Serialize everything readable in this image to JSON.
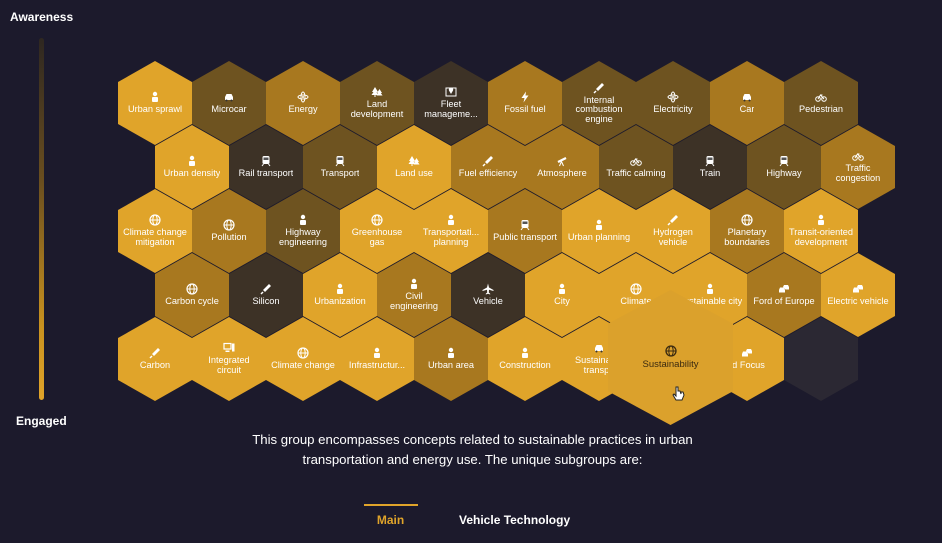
{
  "scale": {
    "top_label": "Awareness",
    "bottom_label": "Engaged"
  },
  "hexes": [
    {
      "label": "Urban sprawl",
      "icon": "worker-icon",
      "tone": 0
    },
    {
      "label": "Microcar",
      "icon": "car-icon",
      "tone": 2
    },
    {
      "label": "Energy",
      "icon": "atom-icon",
      "tone": 1
    },
    {
      "label": "Land development",
      "icon": "trees-icon",
      "tone": 2
    },
    {
      "label": "Fleet manageme...",
      "icon": "map-pin-icon",
      "tone": 3
    },
    {
      "label": "Fossil fuel",
      "icon": "bolt-icon",
      "tone": 1
    },
    {
      "label": "Internal combustion engine",
      "icon": "syringe-icon",
      "tone": 2
    },
    {
      "label": "Electricity",
      "icon": "atom-icon",
      "tone": 2
    },
    {
      "label": "Car",
      "icon": "car-icon",
      "tone": 1
    },
    {
      "label": "Pedestrian",
      "icon": "bicycle-icon",
      "tone": 2
    },
    {
      "label": "Urban density",
      "icon": "worker-icon",
      "tone": 0
    },
    {
      "label": "Rail transport",
      "icon": "train-icon",
      "tone": 3
    },
    {
      "label": "Transport",
      "icon": "train-icon",
      "tone": 2
    },
    {
      "label": "Land use",
      "icon": "trees-icon",
      "tone": 0
    },
    {
      "label": "Fuel efficiency",
      "icon": "syringe-icon",
      "tone": 1
    },
    {
      "label": "Atmosphere",
      "icon": "telescope-icon",
      "tone": 1
    },
    {
      "label": "Traffic calming",
      "icon": "bicycle-icon",
      "tone": 2
    },
    {
      "label": "Train",
      "icon": "train-icon",
      "tone": 3
    },
    {
      "label": "Highway",
      "icon": "train-icon",
      "tone": 2
    },
    {
      "label": "Traffic congestion",
      "icon": "bicycle-icon",
      "tone": 1
    },
    {
      "label": "Climate change mitigation",
      "icon": "globe-icon",
      "tone": 0
    },
    {
      "label": "Pollution",
      "icon": "globe-icon",
      "tone": 1
    },
    {
      "label": "Highway engineering",
      "icon": "worker-icon",
      "tone": 2
    },
    {
      "label": "Greenhouse gas",
      "icon": "globe-icon",
      "tone": 0
    },
    {
      "label": "Transportati... planning",
      "icon": "worker-icon",
      "tone": 0
    },
    {
      "label": "Public transport",
      "icon": "train-icon",
      "tone": 1
    },
    {
      "label": "Urban planning",
      "icon": "worker-icon",
      "tone": 0
    },
    {
      "label": "Hydrogen vehicle",
      "icon": "syringe-icon",
      "tone": 0
    },
    {
      "label": "Planetary boundaries",
      "icon": "globe-icon",
      "tone": 1
    },
    {
      "label": "Transit-oriented development",
      "icon": "worker-icon",
      "tone": 0
    },
    {
      "label": "Carbon cycle",
      "icon": "globe-icon",
      "tone": 1
    },
    {
      "label": "Silicon",
      "icon": "syringe-icon",
      "tone": 3
    },
    {
      "label": "Urbanization",
      "icon": "worker-icon",
      "tone": 0
    },
    {
      "label": "Civil engineering",
      "icon": "worker-icon",
      "tone": 1
    },
    {
      "label": "Vehicle",
      "icon": "plane-icon",
      "tone": 3
    },
    {
      "label": "City",
      "icon": "worker-icon",
      "tone": 0
    },
    {
      "label": "Climate",
      "icon": "globe-icon",
      "tone": 0
    },
    {
      "label": "Sustainable city",
      "icon": "worker-icon",
      "tone": 0
    },
    {
      "label": "Ford of Europe",
      "icon": "cars-icon",
      "tone": 1
    },
    {
      "label": "Electric vehicle",
      "icon": "cars-icon",
      "tone": 0
    },
    {
      "label": "Carbon",
      "icon": "syringe-icon",
      "tone": 0
    },
    {
      "label": "Integrated circuit",
      "icon": "computer-icon",
      "tone": 0
    },
    {
      "label": "Climate change",
      "icon": "globe-icon",
      "tone": 0
    },
    {
      "label": "Infrastructur...",
      "icon": "worker-icon",
      "tone": 0
    },
    {
      "label": "Urban area",
      "icon": "worker-icon",
      "tone": 1
    },
    {
      "label": "Construction",
      "icon": "worker-icon",
      "tone": 0
    },
    {
      "label": "Sustainable transpo",
      "icon": "car-icon",
      "tone": 0
    },
    {
      "label": "Sustainability",
      "icon": "globe-icon",
      "tone": 0
    },
    {
      "label": "rd Focus",
      "icon": "cars-icon",
      "tone": 0
    },
    {
      "label": "",
      "icon": "",
      "tone": -1
    }
  ],
  "expanded_hex": {
    "label": "Sustainability",
    "icon": "globe-icon"
  },
  "description": "This group encompasses concepts related to sustainable practices in urban transportation and energy use. The unique subgroups are:",
  "tabs": {
    "main": "Main",
    "vehicle": "Vehicle Technology"
  }
}
